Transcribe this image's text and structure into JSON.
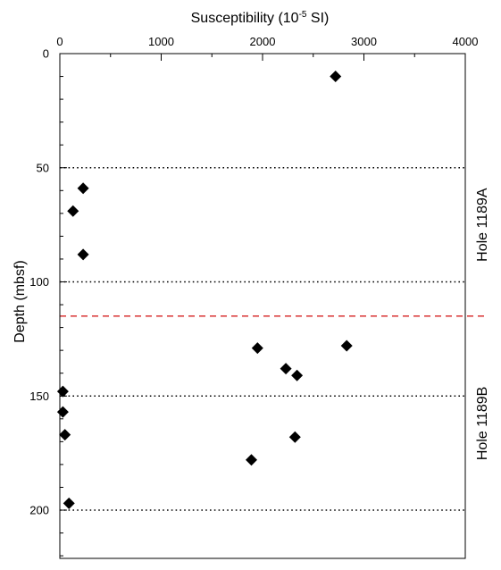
{
  "chart_data": {
    "type": "scatter",
    "title": "",
    "xlabel": "Susceptibility (10-5 SI)",
    "xlabel_parts": {
      "before": "Susceptibility (10",
      "sup": "-5",
      "after": " SI)"
    },
    "ylabel": "Depth (mbsf)",
    "xlim": [
      0,
      4000
    ],
    "ylim": [
      225,
      0
    ],
    "y_inverted": true,
    "x_axis_position": "top",
    "x_major_ticks": [
      0,
      1000,
      2000,
      3000,
      4000
    ],
    "x_tick_labels": [
      "0",
      "1000",
      "2000",
      "3000",
      "4000"
    ],
    "x_minor_step": 500,
    "y_major_ticks": [
      0,
      50,
      100,
      150,
      200
    ],
    "y_tick_labels": [
      "0",
      "50",
      "100",
      "150",
      "200"
    ],
    "y_minor_step": 10,
    "marker": "diamond",
    "marker_color": "#000000",
    "x": [
      2720,
      230,
      130,
      230,
      2830,
      1950,
      2230,
      2340,
      30,
      30,
      50,
      2320,
      1890,
      90
    ],
    "y": [
      10,
      59,
      69,
      88,
      128,
      129,
      138,
      141,
      148,
      157,
      167,
      168,
      178,
      197
    ],
    "reference_lines": [
      {
        "y": 50,
        "style": "dotted",
        "color": "#000000"
      },
      {
        "y": 100,
        "style": "dotted",
        "color": "#000000"
      },
      {
        "y": 115,
        "style": "dashed",
        "color": "#d62020"
      },
      {
        "y": 150,
        "style": "dotted",
        "color": "#000000"
      },
      {
        "y": 200,
        "style": "dotted",
        "color": "#000000"
      }
    ],
    "annotations": [
      {
        "text": "Hole 1189A",
        "y_center": 75,
        "position": "right",
        "rotation": -90
      },
      {
        "text": "Hole 1189B",
        "y_center": 162,
        "position": "right",
        "rotation": -90
      }
    ],
    "grid": false
  }
}
